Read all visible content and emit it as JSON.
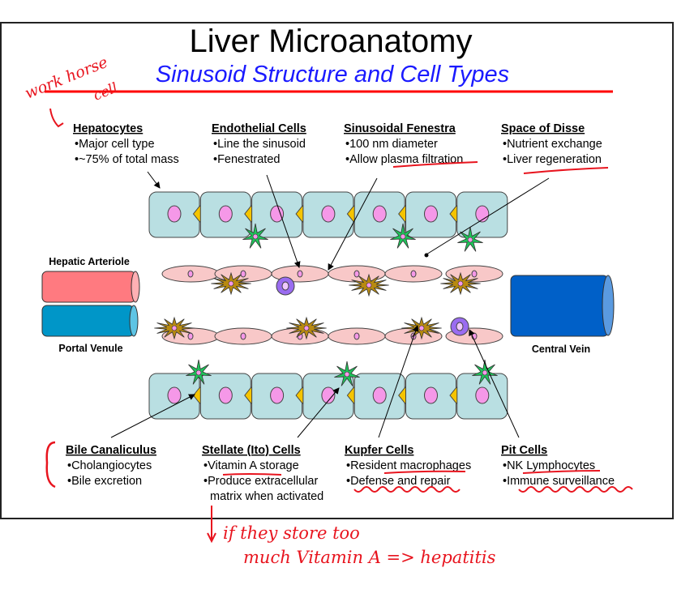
{
  "title": "Liver Microanatomy",
  "subtitle": "Sinusoid Structure and Cell Types",
  "colors": {
    "title_rule": "#ff0000",
    "subtitle": "#1a1aff",
    "hepatocyte": "#b9dfe2",
    "nucleus": "#f598e8",
    "bile_canaliculus": "#f5c400",
    "stellate": "#1fc45a",
    "endothelial": "#f8c8c8",
    "kupffer": "#b88a10",
    "pit": "#9a6cf0",
    "hepatic_arteriole": "#ff7a80",
    "portal_venule": "#0096c8",
    "central_vein": "#0060c8",
    "annotation": "#e8141e"
  },
  "top_labels": [
    {
      "heading": "Hepatocytes",
      "bullets": [
        "Major cell type",
        "~75% of total mass"
      ]
    },
    {
      "heading": "Endothelial Cells",
      "bullets": [
        "Line the sinusoid",
        "Fenestrated"
      ]
    },
    {
      "heading": "Sinusoidal Fenestra",
      "bullets": [
        "100 nm diameter",
        "Allow plasma filtration"
      ]
    },
    {
      "heading": "Space of Disse",
      "bullets": [
        "Nutrient exchange",
        "Liver regeneration"
      ]
    }
  ],
  "bottom_labels": [
    {
      "heading": "Bile Canaliculus",
      "bullets": [
        "Cholangiocytes",
        "Bile excretion"
      ]
    },
    {
      "heading": "Stellate (Ito) Cells",
      "bullets": [
        "Vitamin A storage",
        "Produce extracellular",
        "matrix when activated"
      ]
    },
    {
      "heading": "Kupfer Cells",
      "bullets": [
        "Resident macrophages",
        "Defense and repair"
      ]
    },
    {
      "heading": "Pit Cells",
      "bullets": [
        "NK Lymphocytes",
        "Immune surveillance"
      ]
    }
  ],
  "vessels": {
    "hepatic_arteriole": "Hepatic Arteriole",
    "portal_venule": "Portal Venule",
    "central_vein": "Central Vein"
  },
  "annotations": {
    "workhorse_line1": "work horse",
    "workhorse_line2": "cell",
    "note_line1": "if they store too",
    "note_line2": "much Vitamin A => hepatitis"
  }
}
